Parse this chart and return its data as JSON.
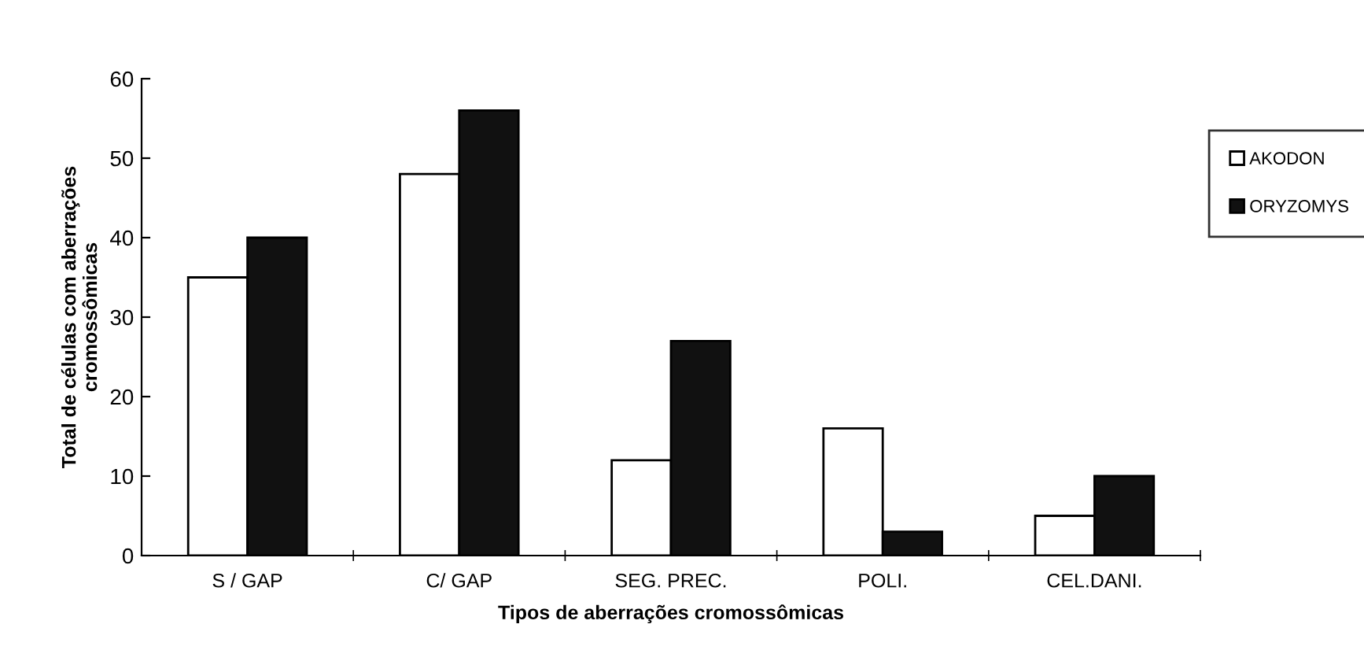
{
  "chart_data": {
    "type": "bar",
    "xlabel": "Tipos de aberrações cromossômicas",
    "ylabel": "Total de células com aberrações\ncromossômicas",
    "categories": [
      "S / GAP",
      "C/ GAP",
      "SEG. PREC.",
      "POLI.",
      "CEL.DANI."
    ],
    "series": [
      {
        "name": "AKODON",
        "color": "#ffffff",
        "values": [
          35,
          48,
          12,
          16,
          5
        ]
      },
      {
        "name": "ORYZOMYS",
        "color": "#111111",
        "values": [
          40,
          56,
          27,
          3,
          10
        ]
      }
    ],
    "ylim": [
      0,
      60
    ],
    "yticks": [
      0,
      10,
      20,
      30,
      40,
      50,
      60
    ],
    "grid": false,
    "legend": "right"
  }
}
